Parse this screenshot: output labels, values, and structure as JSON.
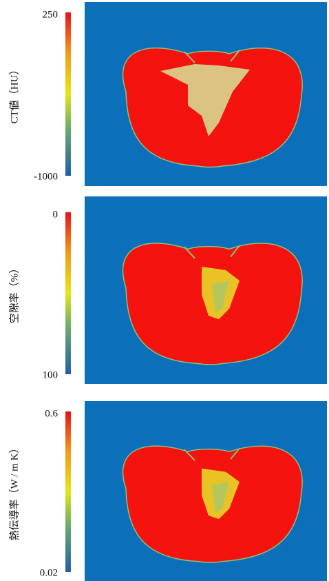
{
  "panels": [
    {
      "label": "CT値（HU）",
      "max": "250",
      "min": "-1000"
    },
    {
      "label": "空隙率（%）",
      "max": "0",
      "min": "100"
    },
    {
      "label": "熱伝導率（W / m K）",
      "max": "0.6",
      "min": "0.02"
    }
  ]
}
